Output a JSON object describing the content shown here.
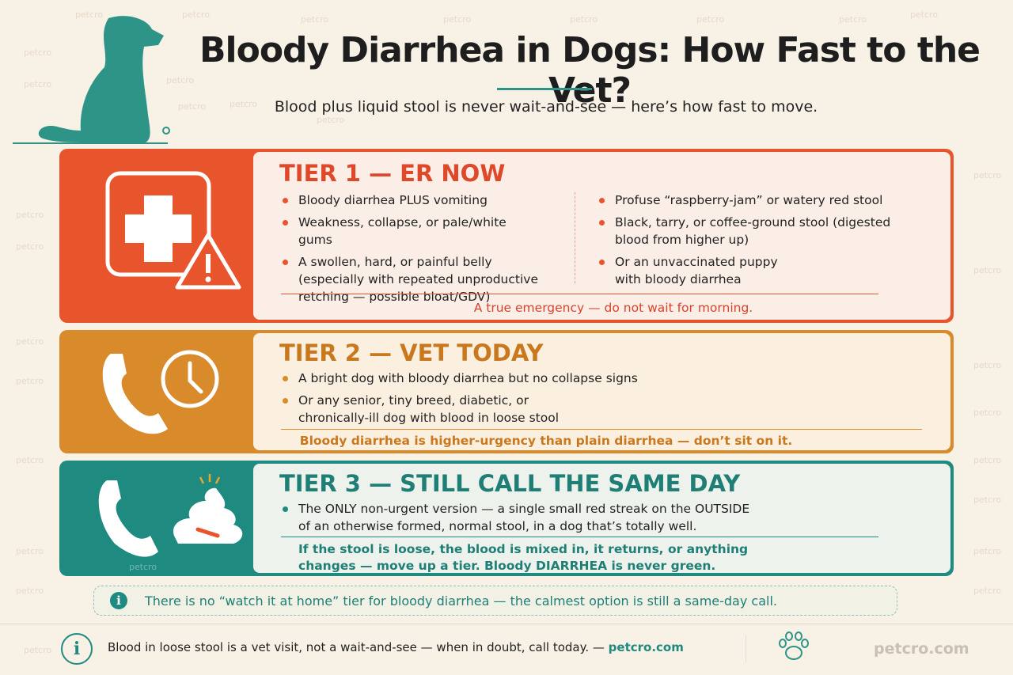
{
  "header": {
    "title": "Bloody Diarrhea in Dogs: How Fast to the Vet?",
    "subtitle": "Blood plus liquid stool is never wait-and-see — here’s how fast to move."
  },
  "watermark": "petcro",
  "tiers": [
    {
      "title": "TIER 1 — ER NOW",
      "left": [
        "Bloody diarrhea PLUS vomiting",
        "Weakness, collapse, or pale/white gums",
        "A swollen, hard, or painful belly (especially with repeated unproductive retching — possible bloat/GDV)"
      ],
      "right": [
        "Profuse “raspberry-jam” or watery red stool",
        "Black, tarry, or coffee-ground stool (digested blood from higher up)",
        "Or an unvaccinated puppy with bloody diarrhea"
      ],
      "note": "A true emergency — do not wait for morning."
    },
    {
      "title": "TIER 2 — VET TODAY",
      "left": [
        "A bright dog with bloody diarrhea but no collapse signs",
        "Or any senior, tiny breed, diabetic, or chronically-ill dog with blood in loose stool"
      ],
      "note": "Bloody diarrhea is higher-urgency than plain diarrhea — don’t sit on it."
    },
    {
      "title": "TIER 3 — STILL CALL THE SAME DAY",
      "left": [
        "The ONLY non-urgent version — a single small red streak on the OUTSIDE of an otherwise formed, normal stool, in a dog that’s totally well."
      ],
      "note": "If the stool is loose, the blood is mixed in, it returns, or anything changes — move up a tier. Bloody DIARRHEA is never green."
    }
  ],
  "info": {
    "icon": "i",
    "text": "There is no “watch it at home” tier for bloody diarrhea — the calmest option is still a same-day call."
  },
  "footer": {
    "icon": "i",
    "text": "Blood in loose stool is a vet visit, not a wait-and-see — when in doubt, call today. —",
    "link": "petcro.com"
  }
}
